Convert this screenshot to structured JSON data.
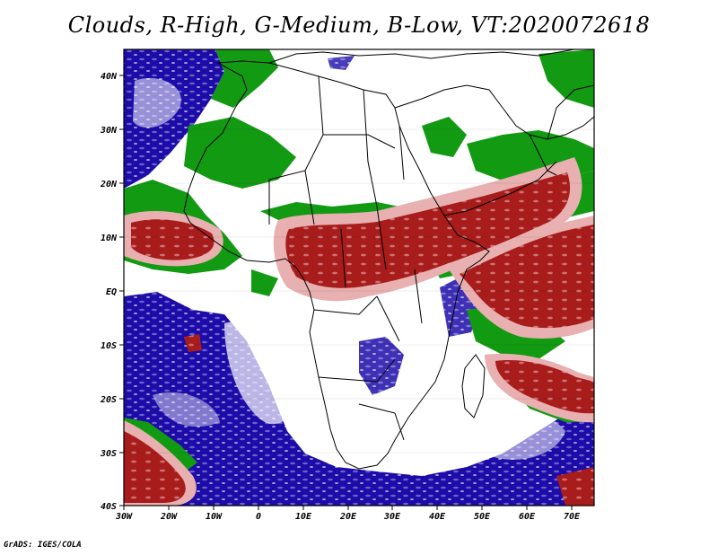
{
  "title": "Clouds, R-High, G-Medium, B-Low, VT:2020072618",
  "credit": "GrADS: IGES/COLA",
  "colors": {
    "high": "#a81c1c",
    "high_edge": "#e8b0b0",
    "medium": "#139a13",
    "medium_edge": "#9de09d",
    "low": "#1d0ca8",
    "low_edge": "#b4b4f0",
    "clear": "#ffffff",
    "coast": "#000000"
  },
  "map": {
    "lon_range": [
      -30,
      75
    ],
    "lat_range": [
      -40,
      45
    ],
    "lat_labels": [
      "40N",
      "30N",
      "20N",
      "10N",
      "EQ",
      "10S",
      "20S",
      "30S",
      "40S"
    ],
    "lon_labels": [
      "30W",
      "20W",
      "10W",
      "0",
      "10E",
      "20E",
      "30E",
      "40E",
      "50E",
      "60E",
      "70E"
    ]
  }
}
